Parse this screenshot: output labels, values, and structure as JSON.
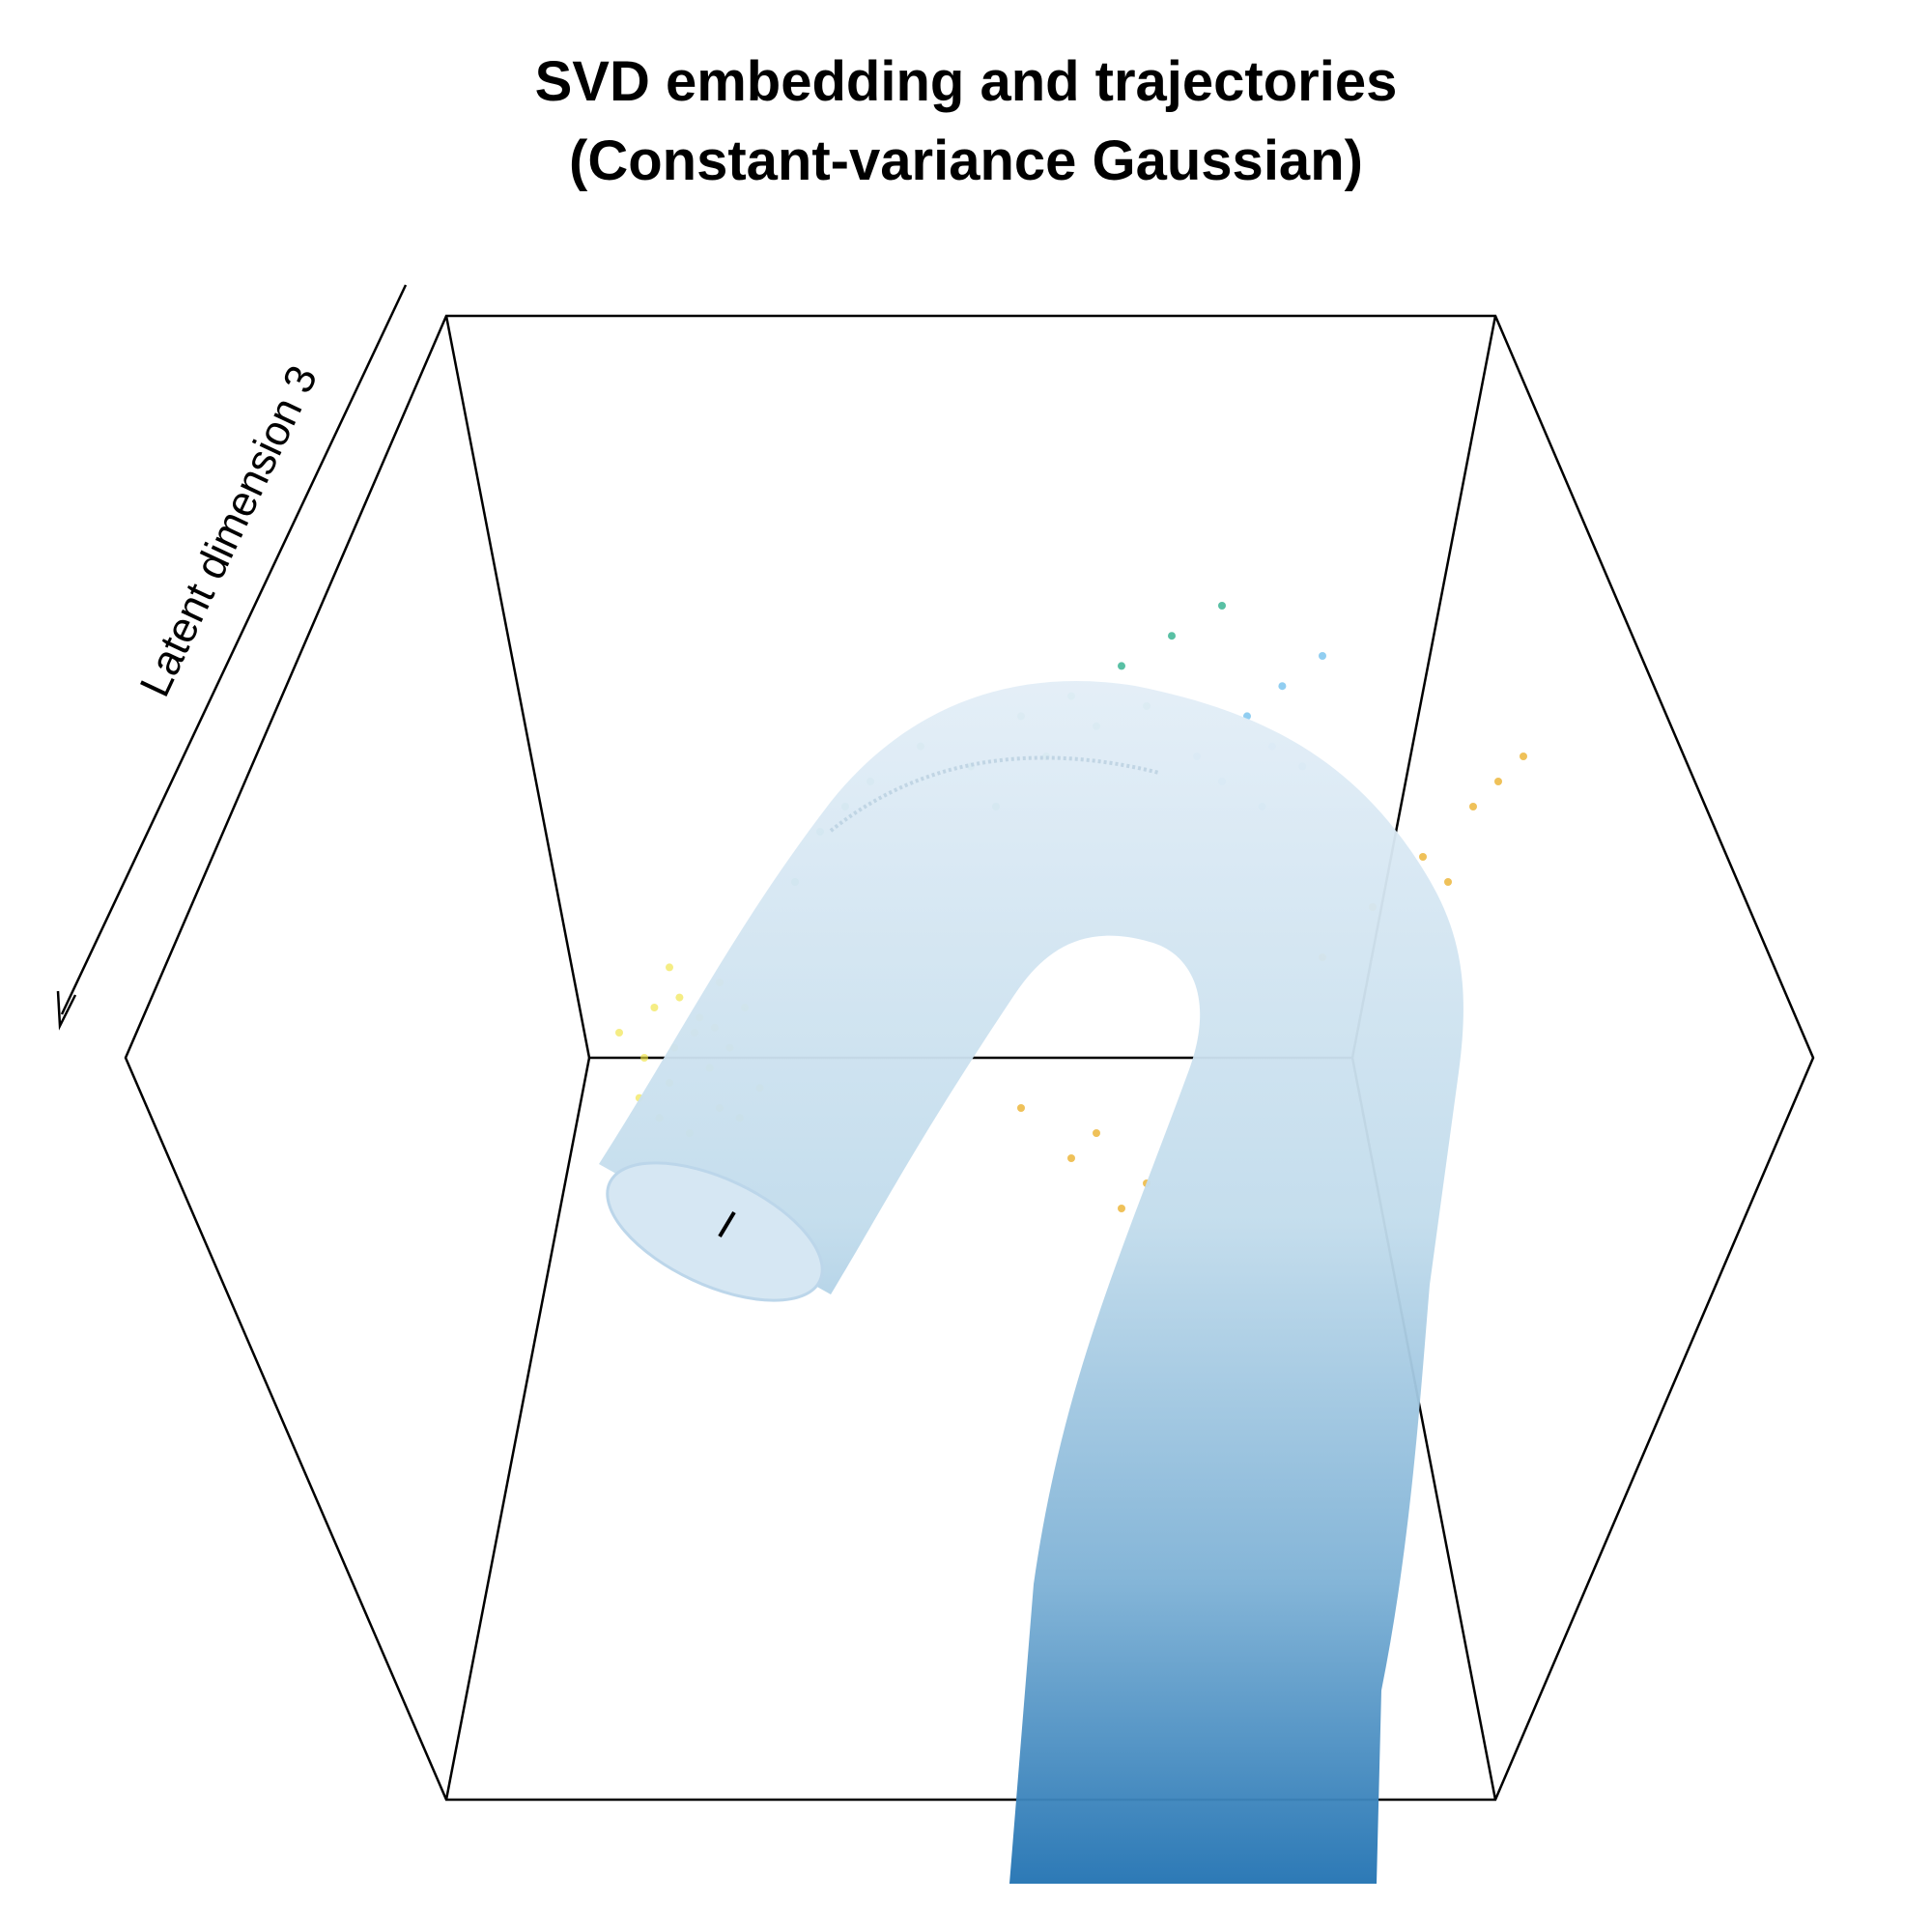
{
  "chart_data": {
    "type": "scatter3d",
    "title": "SVD embedding and trajectories\n(Constant-variance Gaussian)",
    "title_lines": [
      "SVD embedding and trajectories",
      "(Constant-variance Gaussian)"
    ],
    "zlabel": "Latent dimension 3",
    "xlabel": "",
    "ylabel": "",
    "box": true,
    "grid": false,
    "series": [
      {
        "color": "#F0E442",
        "points": [
          [
            -0.55,
            0.05
          ],
          [
            -0.6,
            -0.05
          ],
          [
            -0.5,
            -0.1
          ],
          [
            -0.45,
            0.1
          ],
          [
            -0.65,
            0.0
          ],
          [
            -0.58,
            0.12
          ],
          [
            -0.52,
            -0.02
          ],
          [
            -0.62,
            -0.12
          ],
          [
            -0.48,
            0.02
          ],
          [
            -0.56,
            -0.15
          ],
          [
            -0.6,
            0.18
          ],
          [
            -0.7,
            0.05
          ],
          [
            -0.42,
            -0.06
          ],
          [
            -0.5,
            0.15
          ],
          [
            -0.66,
            -0.08
          ],
          [
            -0.54,
            0.08
          ],
          [
            -0.46,
            -0.12
          ],
          [
            -0.59,
            0.02
          ],
          [
            -0.51,
            0.06
          ],
          [
            -0.63,
            0.1
          ]
        ]
      },
      {
        "color": "#009E73",
        "points": [
          [
            -0.2,
            0.55
          ],
          [
            -0.1,
            0.62
          ],
          [
            0.0,
            0.58
          ],
          [
            0.1,
            0.68
          ],
          [
            0.2,
            0.72
          ],
          [
            0.3,
            0.78
          ],
          [
            -0.3,
            0.45
          ],
          [
            -0.35,
            0.35
          ],
          [
            0.05,
            0.5
          ],
          [
            0.15,
            0.6
          ],
          [
            0.25,
            0.66
          ],
          [
            0.4,
            0.84
          ],
          [
            0.5,
            0.9
          ],
          [
            -0.25,
            0.5
          ],
          [
            0.35,
            0.7
          ]
        ]
      },
      {
        "color": "#56B4E9",
        "points": [
          [
            0.45,
            0.6
          ],
          [
            0.55,
            0.68
          ],
          [
            0.62,
            0.74
          ],
          [
            0.5,
            0.55
          ],
          [
            0.6,
            0.62
          ],
          [
            0.7,
            0.8
          ],
          [
            0.58,
            0.5
          ],
          [
            0.66,
            0.58
          ]
        ]
      },
      {
        "color": "#E69F00",
        "points": [
          [
            0.7,
            0.2
          ],
          [
            0.8,
            0.3
          ],
          [
            0.9,
            0.4
          ],
          [
            1.0,
            0.5
          ],
          [
            1.1,
            0.6
          ],
          [
            0.2,
            -0.2
          ],
          [
            0.3,
            -0.3
          ],
          [
            0.1,
            -0.1
          ],
          [
            0.25,
            -0.15
          ],
          [
            0.35,
            -0.25
          ],
          [
            0.95,
            0.35
          ],
          [
            1.05,
            0.55
          ]
        ]
      }
    ],
    "trajectory": {
      "colors": [
        "#deebf7",
        "#2171b5"
      ]
    }
  }
}
